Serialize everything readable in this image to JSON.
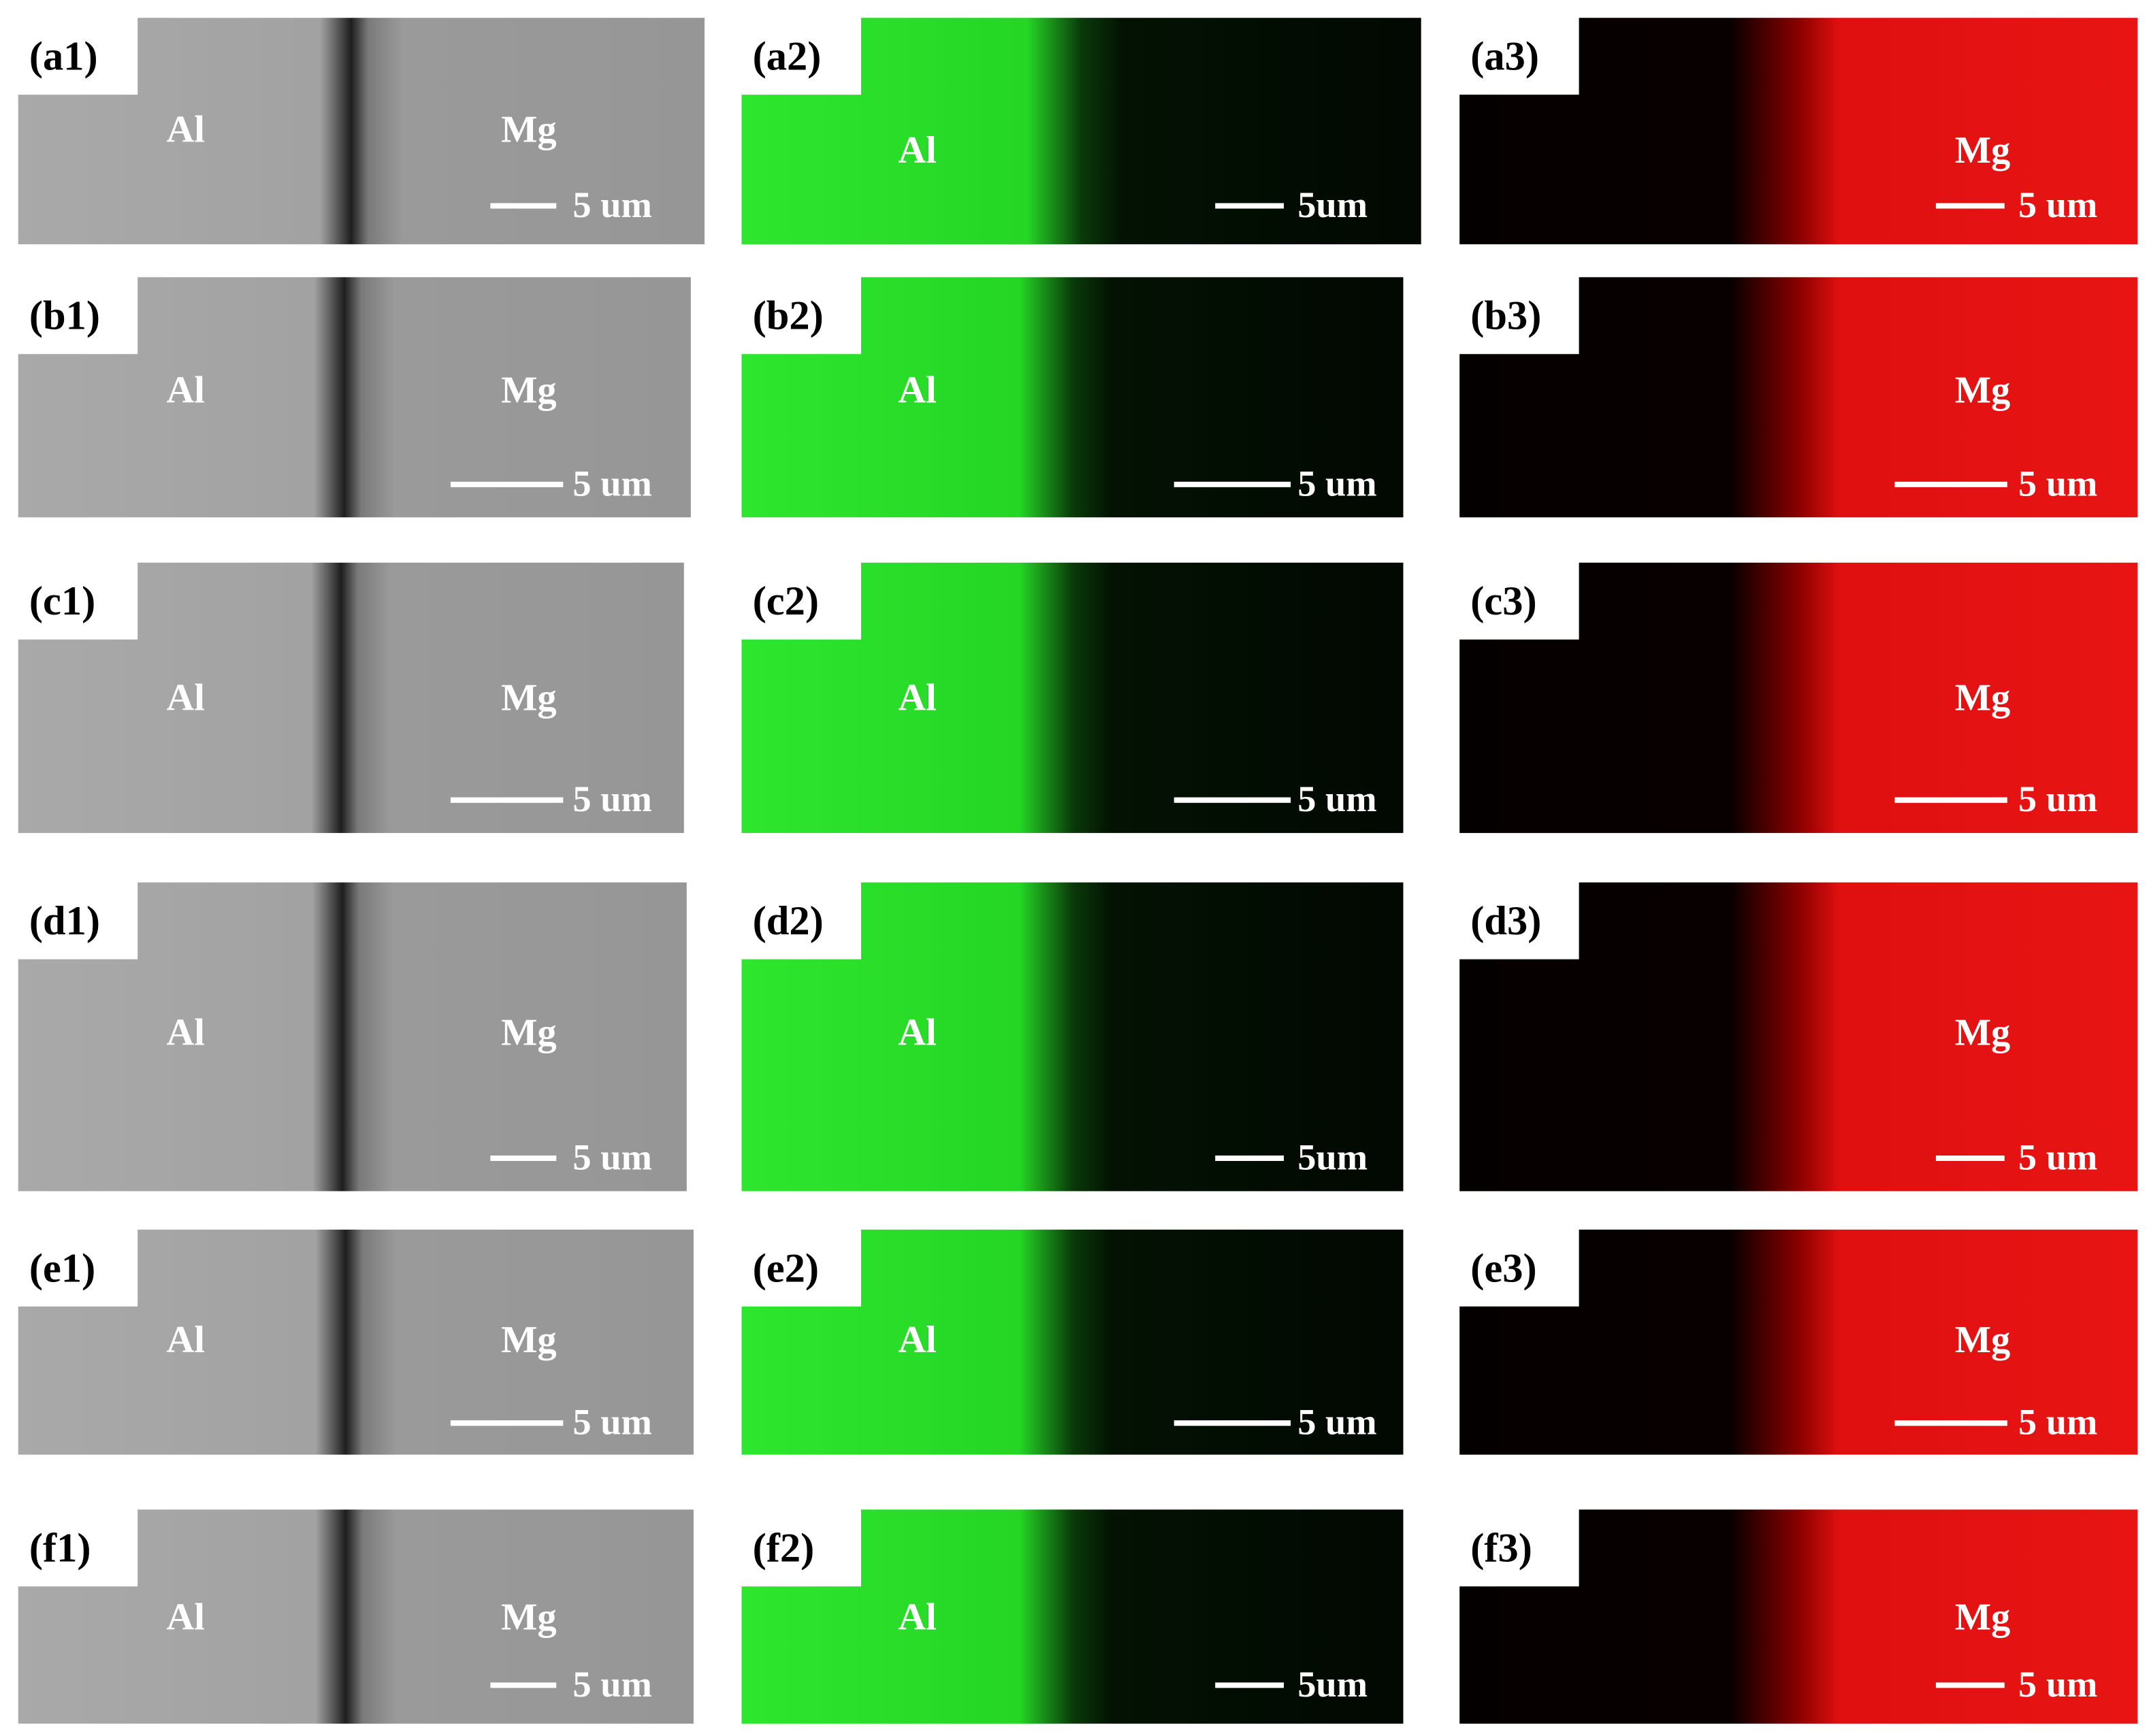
{
  "rows": [
    {
      "panels": [
        {
          "label": "(a1)",
          "labels": [
            "Al",
            "Mg"
          ],
          "scale": "5 um"
        },
        {
          "label": "(a2)",
          "labels": [
            "Al"
          ],
          "scale": "5um"
        },
        {
          "label": "(a3)",
          "labels": [
            "Mg"
          ],
          "scale": "5 um"
        }
      ]
    },
    {
      "panels": [
        {
          "label": "(b1)",
          "labels": [
            "Al",
            "Mg"
          ],
          "scale": "5 um"
        },
        {
          "label": "(b2)",
          "labels": [
            "Al"
          ],
          "scale": "5 um"
        },
        {
          "label": "(b3)",
          "labels": [
            "Mg"
          ],
          "scale": "5 um"
        }
      ]
    },
    {
      "panels": [
        {
          "label": "(c1)",
          "labels": [
            "Al",
            "Mg"
          ],
          "scale": "5 um"
        },
        {
          "label": "(c2)",
          "labels": [
            "Al"
          ],
          "scale": "5 um"
        },
        {
          "label": "(c3)",
          "labels": [
            "Mg"
          ],
          "scale": "5 um"
        }
      ]
    },
    {
      "panels": [
        {
          "label": "(d1)",
          "labels": [
            "Al",
            "Mg"
          ],
          "scale": "5 um"
        },
        {
          "label": "(d2)",
          "labels": [
            "Al"
          ],
          "scale": "5um"
        },
        {
          "label": "(d3)",
          "labels": [
            "Mg"
          ],
          "scale": "5 um"
        }
      ]
    },
    {
      "panels": [
        {
          "label": "(e1)",
          "labels": [
            "Al",
            "Mg"
          ],
          "scale": "5 um"
        },
        {
          "label": "(e2)",
          "labels": [
            "Al"
          ],
          "scale": "5 um"
        },
        {
          "label": "(e3)",
          "labels": [
            "Mg"
          ],
          "scale": "5 um"
        }
      ]
    },
    {
      "panels": [
        {
          "label": "(f1)",
          "labels": [
            "Al",
            "Mg"
          ],
          "scale": "5 um"
        },
        {
          "label": "(f2)",
          "labels": [
            "Al"
          ],
          "scale": "5um"
        },
        {
          "label": "(f3)",
          "labels": [
            "Mg"
          ],
          "scale": "5 um"
        }
      ]
    }
  ]
}
